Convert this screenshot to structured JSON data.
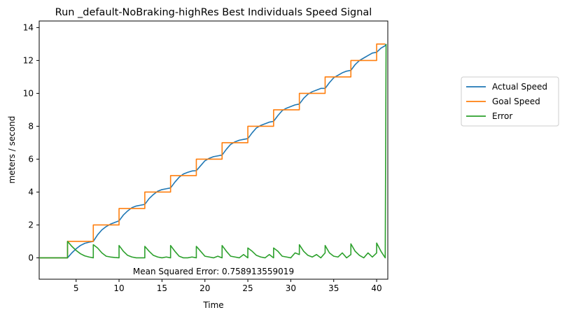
{
  "chart_data": {
    "type": "line",
    "title": "Run _default-NoBraking-highRes Best Individuals Speed Signal",
    "xlabel": "Time",
    "ylabel": "meters / second",
    "xlim": [
      0.7,
      41.3
    ],
    "ylim": [
      -1.3,
      14.4
    ],
    "xticks": [
      5,
      10,
      15,
      20,
      25,
      30,
      35,
      40
    ],
    "yticks": [
      0,
      2,
      4,
      6,
      8,
      10,
      12,
      14
    ],
    "annotation": "Mean Squared Error: 0.758913559019",
    "legend_position": "outside-right",
    "colors": {
      "actual": "#1f77b4",
      "goal": "#ff7f0e",
      "error": "#2ca02c"
    },
    "series": [
      {
        "name": "Actual Speed",
        "color": "#1f77b4",
        "x": [
          0.7,
          4.0,
          4.5,
          5.0,
          5.5,
          6.0,
          6.5,
          7.0,
          7.5,
          8.0,
          8.5,
          9.0,
          9.5,
          10.0,
          10.5,
          11.0,
          11.5,
          12.0,
          12.5,
          13.0,
          13.5,
          14.0,
          14.5,
          15.0,
          15.5,
          16.0,
          16.5,
          17.0,
          17.5,
          18.0,
          18.5,
          19.0,
          19.5,
          20.0,
          20.5,
          21.0,
          21.5,
          22.0,
          22.5,
          23.0,
          23.5,
          24.0,
          24.5,
          25.0,
          25.5,
          26.0,
          26.5,
          27.0,
          27.5,
          28.0,
          28.5,
          29.0,
          29.5,
          30.0,
          30.5,
          31.0,
          31.5,
          32.0,
          32.5,
          33.0,
          33.5,
          34.0,
          34.5,
          35.0,
          35.5,
          36.0,
          36.5,
          37.0,
          37.5,
          38.0,
          38.5,
          39.0,
          39.5,
          40.0,
          40.5,
          41.0,
          41.1
        ],
        "y": [
          0.0,
          0.0,
          0.3,
          0.55,
          0.75,
          0.88,
          0.95,
          1.0,
          1.4,
          1.7,
          1.9,
          2.05,
          2.15,
          2.25,
          2.6,
          2.85,
          3.05,
          3.15,
          3.2,
          3.25,
          3.6,
          3.85,
          4.05,
          4.15,
          4.2,
          4.25,
          4.6,
          4.9,
          5.1,
          5.2,
          5.28,
          5.3,
          5.6,
          5.9,
          6.05,
          6.15,
          6.2,
          6.25,
          6.6,
          6.9,
          7.05,
          7.15,
          7.2,
          7.25,
          7.6,
          7.9,
          8.05,
          8.15,
          8.25,
          8.3,
          8.65,
          8.95,
          9.1,
          9.2,
          9.3,
          9.35,
          9.7,
          9.95,
          10.1,
          10.2,
          10.3,
          10.3,
          10.65,
          10.95,
          11.1,
          11.25,
          11.35,
          11.4,
          11.75,
          12.0,
          12.15,
          12.3,
          12.45,
          12.5,
          12.75,
          12.9,
          13.0
        ]
      },
      {
        "name": "Goal Speed",
        "color": "#ff7f0e",
        "steps": [
          [
            0.7,
            0
          ],
          [
            4.0,
            1
          ],
          [
            7.0,
            2
          ],
          [
            10.0,
            3
          ],
          [
            13.0,
            4
          ],
          [
            16.0,
            5
          ],
          [
            19.0,
            6
          ],
          [
            22.0,
            7
          ],
          [
            25.0,
            8
          ],
          [
            28.0,
            9
          ],
          [
            31.0,
            10
          ],
          [
            34.0,
            11
          ],
          [
            37.0,
            12
          ],
          [
            40.0,
            13
          ],
          [
            41.0,
            13
          ]
        ]
      },
      {
        "name": "Error",
        "color": "#2ca02c",
        "x": [
          0.7,
          4.0,
          4.0,
          4.5,
          5.0,
          5.5,
          6.0,
          6.5,
          7.0,
          7.0,
          7.5,
          8.0,
          8.5,
          9.0,
          9.5,
          10.0,
          10.0,
          10.5,
          11.0,
          11.5,
          12.0,
          12.5,
          13.0,
          13.0,
          13.5,
          14.0,
          14.5,
          15.0,
          15.5,
          16.0,
          16.0,
          16.5,
          17.0,
          17.5,
          18.0,
          18.5,
          19.0,
          19.0,
          19.5,
          20.0,
          20.5,
          21.0,
          21.5,
          22.0,
          22.0,
          22.5,
          23.0,
          23.5,
          24.0,
          24.5,
          25.0,
          25.0,
          25.5,
          26.0,
          26.5,
          27.0,
          27.5,
          28.0,
          28.0,
          28.5,
          29.0,
          29.5,
          30.0,
          30.5,
          31.0,
          31.0,
          31.5,
          32.0,
          32.5,
          33.0,
          33.5,
          34.0,
          34.0,
          34.5,
          35.0,
          35.5,
          36.0,
          36.5,
          37.0,
          37.0,
          37.5,
          38.0,
          38.5,
          39.0,
          39.5,
          40.0,
          40.0,
          40.5,
          41.0,
          41.0,
          41.1
        ],
        "y": [
          0.0,
          0.0,
          1.0,
          0.7,
          0.45,
          0.25,
          0.12,
          0.05,
          0.0,
          0.8,
          0.6,
          0.3,
          0.1,
          0.05,
          0.02,
          0.0,
          0.75,
          0.4,
          0.15,
          0.05,
          0.0,
          0.0,
          0.0,
          0.7,
          0.4,
          0.15,
          0.05,
          0.0,
          0.05,
          0.0,
          0.75,
          0.4,
          0.1,
          0.0,
          0.0,
          0.05,
          0.0,
          0.7,
          0.4,
          0.1,
          0.05,
          0.0,
          0.1,
          0.0,
          0.75,
          0.4,
          0.1,
          0.05,
          0.0,
          0.2,
          0.0,
          0.6,
          0.4,
          0.15,
          0.05,
          0.0,
          0.2,
          0.0,
          0.6,
          0.4,
          0.1,
          0.05,
          0.0,
          0.3,
          0.2,
          0.8,
          0.4,
          0.15,
          0.05,
          0.2,
          0.0,
          0.3,
          0.75,
          0.3,
          0.1,
          0.05,
          0.3,
          0.0,
          0.2,
          0.85,
          0.4,
          0.15,
          0.0,
          0.3,
          0.05,
          0.3,
          0.9,
          0.4,
          0.0,
          0.0,
          13.0
        ]
      }
    ]
  }
}
